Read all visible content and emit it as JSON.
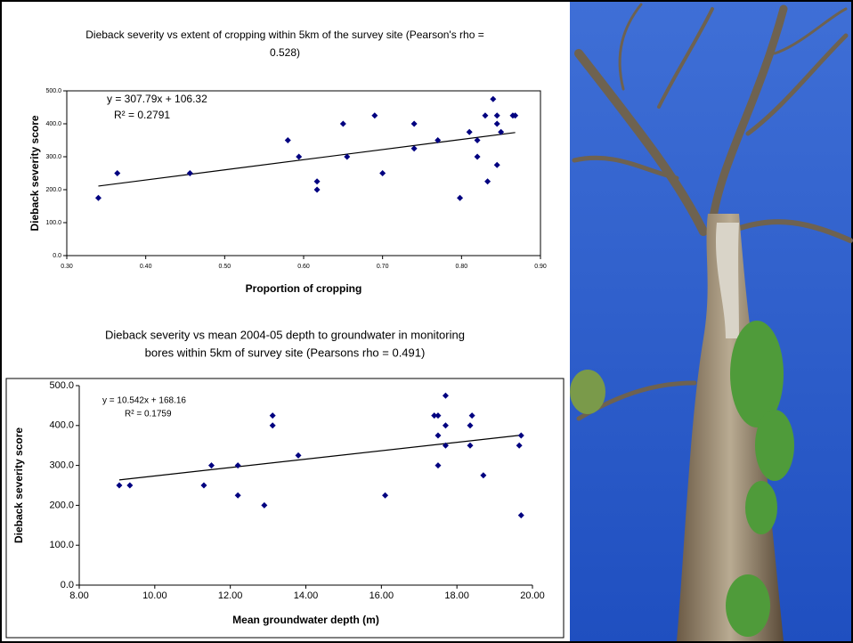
{
  "chart_data": [
    {
      "type": "scatter",
      "title": [
        "Dieback severity vs extent of cropping within 5km of the survey site (Pearson's rho =",
        "0.528)"
      ],
      "x_label": "Proportion of cropping",
      "y_label": "Dieback severity score",
      "x": [
        0.34,
        0.364,
        0.456,
        0.58,
        0.594,
        0.617,
        0.617,
        0.65,
        0.655,
        0.69,
        0.7,
        0.74,
        0.74,
        0.77,
        0.798,
        0.81,
        0.82,
        0.82,
        0.83,
        0.833,
        0.84,
        0.845,
        0.845,
        0.845,
        0.85,
        0.865,
        0.868
      ],
      "values": [
        175,
        250,
        250,
        350,
        300,
        225,
        200,
        400,
        300,
        425,
        250,
        325,
        400,
        350,
        175,
        375,
        300,
        350,
        425,
        225,
        475,
        275,
        425,
        400,
        375,
        425,
        425
      ],
      "color": "#000080",
      "xlim": [
        0.3,
        0.9
      ],
      "xticks": [
        {
          "value": 0.3,
          "label": "0.30"
        },
        {
          "value": 0.4,
          "label": "0.40"
        },
        {
          "value": 0.5,
          "label": "0.50"
        },
        {
          "value": 0.6,
          "label": "0.60"
        },
        {
          "value": 0.7,
          "label": "0.70"
        },
        {
          "value": 0.8,
          "label": "0.80"
        },
        {
          "value": 0.9,
          "label": "0.90"
        }
      ],
      "ylim": [
        0,
        500
      ],
      "yticks": [
        {
          "value": 0,
          "label": "0.0"
        },
        {
          "value": 100,
          "label": "100.0"
        },
        {
          "value": 200,
          "label": "200.0"
        },
        {
          "value": 300,
          "label": "300.0"
        },
        {
          "value": 400,
          "label": "400.0"
        },
        {
          "value": 500,
          "label": "500.0"
        }
      ],
      "trendline": {
        "slope": 307.79,
        "intercept": 106.32,
        "label": "y = 307.79x + 106.32",
        "r2_label": "R² = 0.2791"
      }
    },
    {
      "type": "scatter",
      "title": [
        "Dieback severity vs mean 2004-05 depth to groundwater in monitoring",
        "bores within 5km of survey site (Pearsons rho = 0.491)"
      ],
      "x_label": "Mean groundwater depth (m)",
      "y_label": "Dieback severity score",
      "x": [
        9.06,
        9.34,
        11.3,
        11.5,
        12.2,
        12.2,
        12.9,
        13.12,
        13.12,
        13.8,
        16.1,
        17.4,
        17.5,
        17.5,
        17.5,
        17.7,
        17.7,
        17.7,
        18.35,
        18.4,
        18.35,
        18.7,
        19.65,
        19.7,
        19.7
      ],
      "values": [
        250,
        250,
        250,
        300,
        300,
        225,
        200,
        425,
        400,
        325,
        225,
        425,
        425,
        375,
        300,
        475,
        400,
        350,
        400,
        425,
        350,
        275,
        350,
        375,
        175
      ],
      "color": "#000080",
      "xlim": [
        8,
        20
      ],
      "xticks": [
        {
          "value": 8,
          "label": "8.00"
        },
        {
          "value": 10,
          "label": "10.00"
        },
        {
          "value": 12,
          "label": "12.00"
        },
        {
          "value": 14,
          "label": "14.00"
        },
        {
          "value": 16,
          "label": "16.00"
        },
        {
          "value": 18,
          "label": "18.00"
        },
        {
          "value": 20,
          "label": "20.00"
        }
      ],
      "ylim": [
        0,
        500
      ],
      "yticks": [
        {
          "value": 0,
          "label": "0.0"
        },
        {
          "value": 100,
          "label": "100.0"
        },
        {
          "value": 200,
          "label": "200.0"
        },
        {
          "value": 300,
          "label": "300.0"
        },
        {
          "value": 400,
          "label": "400.0"
        },
        {
          "value": 500,
          "label": "500.0"
        }
      ],
      "trendline": {
        "slope": 10.542,
        "intercept": 168.16,
        "label": "y = 10.542x + 168.16",
        "r2_label": "R² = 0.1759"
      }
    }
  ]
}
